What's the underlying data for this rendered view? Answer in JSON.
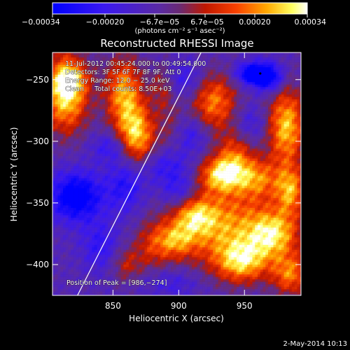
{
  "chart_data": {
    "type": "heatmap",
    "title": "Reconstructed RHESSI Image",
    "xlabel": "Heliocentric X (arcsec)",
    "ylabel": "Heliocentric Y (arcsec)",
    "xlim": [
      804,
      993
    ],
    "ylim": [
      -425,
      -228
    ],
    "x_ticks": [
      850,
      900,
      950
    ],
    "x_tick_labels": [
      "850",
      "900",
      "950"
    ],
    "y_ticks": [
      -250,
      -300,
      -350,
      -400
    ],
    "y_tick_labels": [
      "−250",
      "−300",
      "−350",
      "−400"
    ],
    "colorbar": {
      "range": [
        -0.00034,
        0.00034
      ],
      "tick_values": [
        -0.00034,
        -0.0002,
        -6.7e-05,
        6.7e-05,
        0.0002,
        0.00034
      ],
      "tick_labels": [
        "−0.00034",
        "−0.00020",
        "−6.7e−05",
        "6.7e−05",
        "0.00020",
        "0.00034"
      ],
      "unit_label": "(photons cm⁻² s⁻¹ asec⁻²)"
    },
    "annotations": [
      "11-Jul-2012 00:45:24.000 to 00:49:54.000",
      "Detectors: 3F 5F 6F 7F 8F 9F, Att 0",
      "Energy Range: 12.0 − 25.0 keV",
      "Clean     Total counts: 8.50E+03"
    ],
    "peak_label": "Position of Peak = [986,−274]",
    "peak": {
      "x": 986,
      "y": -274
    },
    "limb_line": [
      [
        823,
        -425
      ],
      [
        917,
        -228
      ]
    ],
    "blobs": [
      {
        "x": 814,
        "y": -260,
        "sx": 12,
        "sy": 22,
        "amp": 0.0004
      },
      {
        "x": 818,
        "y": -250,
        "sx": 8,
        "sy": 8,
        "amp": 0.00015
      },
      {
        "x": 858,
        "y": -260,
        "sx": 10,
        "sy": 20,
        "amp": 0.0003
      },
      {
        "x": 868,
        "y": -296,
        "sx": 10,
        "sy": 18,
        "amp": 0.00034
      },
      {
        "x": 887,
        "y": -255,
        "sx": 6,
        "sy": 12,
        "amp": 0.00012
      },
      {
        "x": 860,
        "y": -400,
        "sx": 8,
        "sy": 10,
        "amp": 0.00014
      },
      {
        "x": 893,
        "y": -283,
        "sx": 7,
        "sy": 18,
        "amp": 8e-05
      },
      {
        "x": 927,
        "y": -268,
        "sx": 12,
        "sy": 16,
        "amp": 0.00027
      },
      {
        "x": 932,
        "y": -327,
        "sx": 12,
        "sy": 10,
        "amp": 0.0003
      },
      {
        "x": 942,
        "y": -312,
        "sx": 10,
        "sy": 14,
        "amp": 0.0002
      },
      {
        "x": 960,
        "y": -330,
        "sx": 12,
        "sy": 12,
        "amp": 0.00024
      },
      {
        "x": 982,
        "y": -288,
        "sx": 10,
        "sy": 22,
        "amp": 0.00034
      },
      {
        "x": 985,
        "y": -340,
        "sx": 8,
        "sy": 14,
        "amp": 0.00028
      },
      {
        "x": 930,
        "y": -368,
        "sx": 26,
        "sy": 22,
        "amp": 0.0003
      },
      {
        "x": 912,
        "y": -360,
        "sx": 10,
        "sy": 10,
        "amp": 0.00018
      },
      {
        "x": 898,
        "y": -380,
        "sx": 10,
        "sy": 10,
        "amp": 0.0002
      },
      {
        "x": 880,
        "y": -385,
        "sx": 10,
        "sy": 14,
        "amp": 0.00015
      },
      {
        "x": 948,
        "y": -398,
        "sx": 14,
        "sy": 12,
        "amp": 0.0003
      },
      {
        "x": 972,
        "y": -375,
        "sx": 14,
        "sy": 14,
        "amp": 0.00032
      },
      {
        "x": 985,
        "y": -408,
        "sx": 10,
        "sy": 12,
        "amp": 0.00026
      },
      {
        "x": 955,
        "y": -245,
        "sx": 8,
        "sy": 6,
        "amp": -0.0003
      },
      {
        "x": 968,
        "y": -248,
        "sx": 8,
        "sy": 8,
        "amp": -0.00032
      },
      {
        "x": 822,
        "y": -345,
        "sx": 14,
        "sy": 14,
        "amp": -0.00032
      },
      {
        "x": 860,
        "y": -335,
        "sx": 10,
        "sy": 16,
        "amp": -0.00018
      },
      {
        "x": 848,
        "y": -305,
        "sx": 10,
        "sy": 8,
        "amp": -0.00014
      },
      {
        "x": 890,
        "y": -320,
        "sx": 14,
        "sy": 10,
        "amp": -0.00014
      },
      {
        "x": 910,
        "y": -295,
        "sx": 8,
        "sy": 10,
        "amp": -0.00012
      },
      {
        "x": 905,
        "y": -250,
        "sx": 10,
        "sy": 10,
        "amp": -0.00012
      },
      {
        "x": 840,
        "y": -385,
        "sx": 10,
        "sy": 14,
        "amp": -0.00014
      },
      {
        "x": 895,
        "y": -415,
        "sx": 14,
        "sy": 8,
        "amp": -0.0001
      },
      {
        "x": 955,
        "y": -285,
        "sx": 8,
        "sy": 10,
        "amp": -0.0001
      },
      {
        "x": 900,
        "y": -340,
        "sx": 10,
        "sy": 10,
        "amp": -0.00016
      }
    ]
  },
  "footer": {
    "date_stamp": "2-May-2014 10:13"
  }
}
